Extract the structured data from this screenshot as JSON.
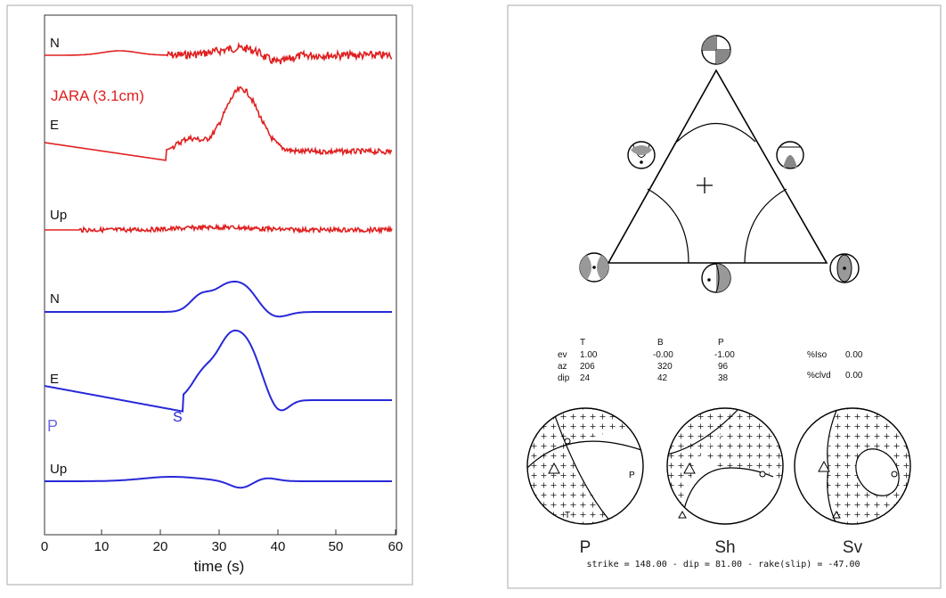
{
  "left_panel": {
    "trace_labels": [
      "N",
      "E",
      "Up",
      "N",
      "E",
      "Up"
    ],
    "station_label": "JARA (3.1cm)",
    "phase_p": "P",
    "phase_s": "S",
    "x_ticks": [
      "0",
      "10",
      "20",
      "30",
      "40",
      "50",
      "60"
    ],
    "x_label": "time (s)",
    "colors": {
      "observed": "#e02020",
      "synthetic": "#2828d8",
      "phase_label": "#6a6ae0"
    }
  },
  "right_panel": {
    "mt_table": {
      "headers": [
        "T",
        "B",
        "P"
      ],
      "rows": [
        {
          "label": "ev",
          "values": [
            "1.00",
            "-0.00",
            "-1.00"
          ]
        },
        {
          "label": "az",
          "values": [
            "206",
            "320",
            "96"
          ]
        },
        {
          "label": "dip",
          "values": [
            "24",
            "42",
            "38"
          ]
        }
      ],
      "extras": [
        {
          "label": "%Iso",
          "value": "0.00"
        },
        {
          "label": "%clvd",
          "value": "0.00"
        }
      ]
    },
    "sphere_labels": [
      "P",
      "Sh",
      "Sv"
    ],
    "p_sphere_labels": {
      "p_axis": "P",
      "t_axis": "T"
    },
    "footer": "strike = 148.00 - dip = 81.00 - rake(slip) = -47.00"
  },
  "chart_data": {
    "type": "line",
    "x_range": [
      0,
      60
    ],
    "xlabel": "time (s)",
    "categories": [
      "N",
      "E",
      "Up",
      "N",
      "E",
      "Up"
    ]
  }
}
